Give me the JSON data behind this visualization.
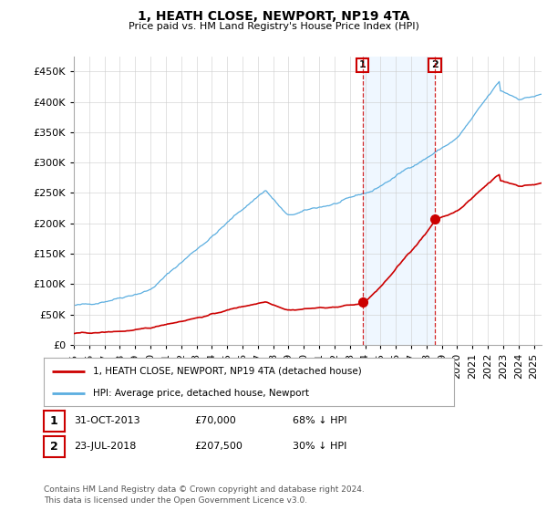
{
  "title": "1, HEATH CLOSE, NEWPORT, NP19 4TA",
  "subtitle": "Price paid vs. HM Land Registry's House Price Index (HPI)",
  "ylabel_ticks": [
    "£0",
    "£50K",
    "£100K",
    "£150K",
    "£200K",
    "£250K",
    "£300K",
    "£350K",
    "£400K",
    "£450K"
  ],
  "ytick_values": [
    0,
    50000,
    100000,
    150000,
    200000,
    250000,
    300000,
    350000,
    400000,
    450000
  ],
  "ylim": [
    0,
    475000
  ],
  "xlim_start": 1995.0,
  "xlim_end": 2025.5,
  "hpi_color": "#5baee0",
  "hpi_fill_color": "#ddeeff",
  "hpi_fill_alpha": 0.45,
  "property_color": "#cc0000",
  "marker1_date": 2013.83,
  "marker1_price": 70000,
  "marker2_date": 2018.55,
  "marker2_price": 207500,
  "legend_line1": "1, HEATH CLOSE, NEWPORT, NP19 4TA (detached house)",
  "legend_line2": "HPI: Average price, detached house, Newport",
  "table_row1_num": "1",
  "table_row1_date": "31-OCT-2013",
  "table_row1_price": "£70,000",
  "table_row1_hpi": "68% ↓ HPI",
  "table_row2_num": "2",
  "table_row2_date": "23-JUL-2018",
  "table_row2_price": "£207,500",
  "table_row2_hpi": "30% ↓ HPI",
  "footnote": "Contains HM Land Registry data © Crown copyright and database right 2024.\nThis data is licensed under the Open Government Licence v3.0.",
  "background_color": "#ffffff",
  "grid_color": "#cccccc"
}
